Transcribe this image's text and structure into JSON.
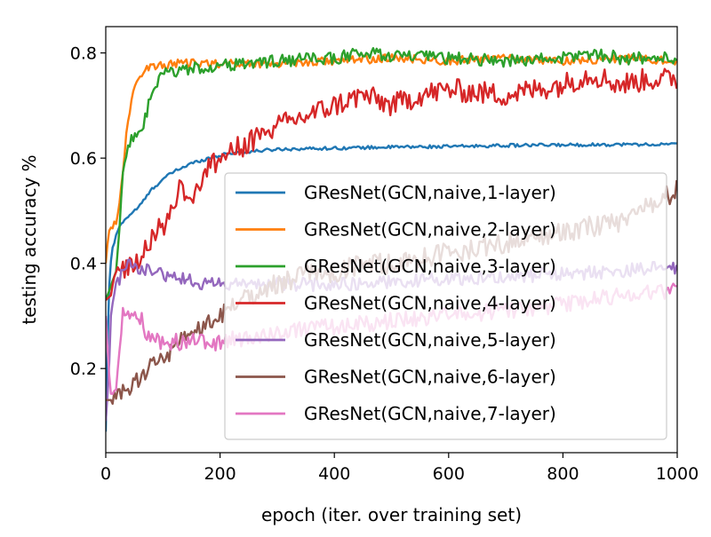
{
  "chart_data": {
    "type": "line",
    "title": "",
    "xlabel": "epoch (iter. over training set)",
    "ylabel": "testing accuracy %",
    "xlim": [
      0,
      1000
    ],
    "ylim": [
      0.04,
      0.85
    ],
    "xticks": [
      0,
      200,
      400,
      600,
      800,
      1000
    ],
    "xtick_labels": [
      "0",
      "200",
      "400",
      "600",
      "800",
      "1000"
    ],
    "yticks": [
      0.2,
      0.4,
      0.6,
      0.8
    ],
    "ytick_labels": [
      "0.2",
      "0.4",
      "0.6",
      "0.8"
    ],
    "grid": false,
    "legend_position": "lower-right",
    "series": [
      {
        "name": "GResNet(GCN,naive,1-layer)",
        "color": "#1f77b4",
        "noise": 0.003,
        "x": [
          0,
          5,
          10,
          20,
          30,
          40,
          50,
          60,
          80,
          100,
          120,
          150,
          180,
          200,
          220,
          250,
          280,
          300,
          350,
          400,
          450,
          500,
          600,
          700,
          800,
          900,
          1000
        ],
        "y": [
          0.08,
          0.34,
          0.42,
          0.46,
          0.48,
          0.49,
          0.5,
          0.51,
          0.54,
          0.56,
          0.575,
          0.59,
          0.6,
          0.605,
          0.61,
          0.612,
          0.615,
          0.617,
          0.618,
          0.619,
          0.62,
          0.621,
          0.622,
          0.624,
          0.625,
          0.626,
          0.626
        ]
      },
      {
        "name": "GResNet(GCN,naive,2-layer)",
        "color": "#ff7f0e",
        "noise": 0.008,
        "x": [
          0,
          5,
          10,
          20,
          30,
          40,
          50,
          60,
          70,
          80,
          100,
          120,
          150,
          200,
          300,
          400,
          500,
          600,
          700,
          800,
          900,
          1000
        ],
        "y": [
          0.4,
          0.46,
          0.47,
          0.48,
          0.58,
          0.68,
          0.73,
          0.76,
          0.77,
          0.775,
          0.775,
          0.78,
          0.78,
          0.78,
          0.78,
          0.785,
          0.79,
          0.785,
          0.79,
          0.785,
          0.79,
          0.785
        ]
      },
      {
        "name": "GResNet(GCN,naive,3-layer)",
        "color": "#2ca02c",
        "noise": 0.012,
        "x": [
          0,
          10,
          20,
          30,
          40,
          60,
          80,
          100,
          120,
          150,
          200,
          250,
          300,
          400,
          450,
          500,
          600,
          700,
          800,
          850,
          900,
          1000
        ],
        "y": [
          0.33,
          0.36,
          0.4,
          0.58,
          0.63,
          0.64,
          0.72,
          0.76,
          0.765,
          0.77,
          0.775,
          0.78,
          0.785,
          0.79,
          0.8,
          0.795,
          0.79,
          0.785,
          0.79,
          0.8,
          0.79,
          0.79
        ]
      },
      {
        "name": "GResNet(GCN,naive,4-layer)",
        "color": "#d62728",
        "noise": 0.022,
        "x": [
          0,
          10,
          20,
          30,
          40,
          60,
          70,
          80,
          100,
          120,
          130,
          150,
          170,
          200,
          250,
          300,
          350,
          400,
          450,
          500,
          550,
          600,
          700,
          800,
          850,
          900,
          950,
          1000
        ],
        "y": [
          0.33,
          0.34,
          0.38,
          0.39,
          0.4,
          0.4,
          0.44,
          0.45,
          0.47,
          0.51,
          0.55,
          0.52,
          0.57,
          0.6,
          0.63,
          0.66,
          0.68,
          0.7,
          0.72,
          0.7,
          0.72,
          0.73,
          0.72,
          0.74,
          0.76,
          0.74,
          0.75,
          0.75
        ]
      },
      {
        "name": "GResNet(GCN,naive,5-layer)",
        "color": "#9467bd",
        "noise": 0.013,
        "x": [
          0,
          5,
          10,
          20,
          30,
          40,
          60,
          80,
          100,
          120,
          140,
          160,
          180,
          200,
          300,
          400,
          500,
          600,
          700,
          800,
          900,
          950,
          1000
        ],
        "y": [
          0.1,
          0.18,
          0.33,
          0.36,
          0.39,
          0.395,
          0.39,
          0.385,
          0.38,
          0.375,
          0.37,
          0.365,
          0.36,
          0.36,
          0.36,
          0.36,
          0.365,
          0.37,
          0.375,
          0.38,
          0.385,
          0.39,
          0.39
        ]
      },
      {
        "name": "GResNet(GCN,naive,6-layer)",
        "color": "#8c564b",
        "noise": 0.02,
        "x": [
          0,
          10,
          20,
          30,
          40,
          50,
          60,
          70,
          80,
          100,
          120,
          150,
          200,
          250,
          300,
          350,
          400,
          450,
          500,
          600,
          700,
          800,
          900,
          950,
          1000
        ],
        "y": [
          0.14,
          0.14,
          0.14,
          0.15,
          0.16,
          0.17,
          0.18,
          0.2,
          0.21,
          0.22,
          0.24,
          0.26,
          0.3,
          0.34,
          0.36,
          0.38,
          0.38,
          0.4,
          0.4,
          0.42,
          0.44,
          0.46,
          0.48,
          0.51,
          0.54
        ]
      },
      {
        "name": "GResNet(GCN,naive,7-layer)",
        "color": "#e377c2",
        "noise": 0.016,
        "x": [
          0,
          5,
          10,
          20,
          30,
          40,
          50,
          60,
          70,
          80,
          100,
          150,
          200,
          300,
          400,
          500,
          600,
          700,
          800,
          900,
          1000
        ],
        "y": [
          0.3,
          0.2,
          0.14,
          0.18,
          0.3,
          0.31,
          0.3,
          0.3,
          0.27,
          0.26,
          0.25,
          0.25,
          0.25,
          0.27,
          0.28,
          0.29,
          0.3,
          0.31,
          0.32,
          0.34,
          0.35
        ]
      }
    ]
  }
}
